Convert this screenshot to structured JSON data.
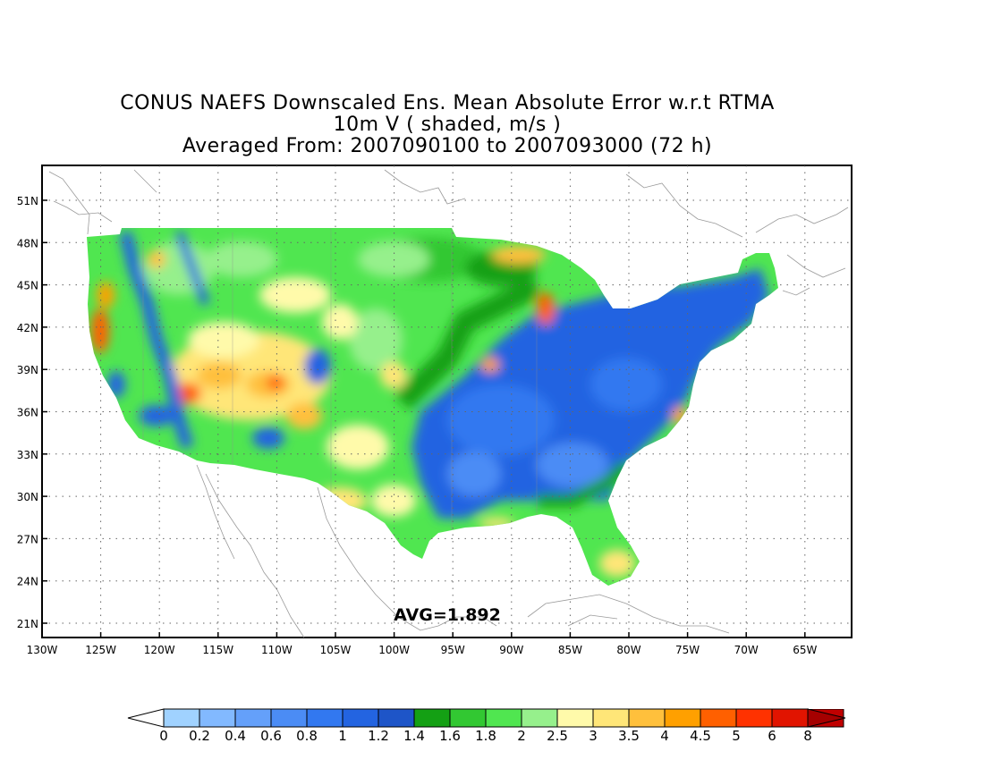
{
  "title": {
    "line1": "CONUS NAEFS Downscaled Ens. Mean Absolute Error w.r.t RTMA",
    "line2": "10m V ( shaded, m/s )",
    "line3": "Averaged From: 2007090100 to 2007093000 (72 h)"
  },
  "map": {
    "lat_labels": [
      "51N",
      "48N",
      "45N",
      "42N",
      "39N",
      "36N",
      "33N",
      "30N",
      "27N",
      "24N",
      "21N"
    ],
    "lon_labels": [
      "130W",
      "125W",
      "120W",
      "115W",
      "110W",
      "105W",
      "100W",
      "95W",
      "90W",
      "85W",
      "80W",
      "75W",
      "70W",
      "65W"
    ],
    "avg_label": "AVG=1.892",
    "grid": "dotted"
  },
  "colorbar": {
    "labels": [
      "0",
      "0.2",
      "0.4",
      "0.6",
      "0.8",
      "1",
      "1.2",
      "1.4",
      "1.6",
      "1.8",
      "2",
      "2.5",
      "3",
      "3.5",
      "4",
      "4.5",
      "5",
      "6",
      "8"
    ],
    "under_color": "#ffffff",
    "colors": [
      "#a0d2ff",
      "#82b9ff",
      "#64a0fa",
      "#4b8cf5",
      "#3278f0",
      "#2364e1",
      "#1e55c8",
      "#14a014",
      "#32c832",
      "#50e650",
      "#96f08c",
      "#fffaaa",
      "#ffe678",
      "#ffc03c",
      "#ffa000",
      "#ff6000",
      "#ff3200",
      "#e11400",
      "#c00000"
    ],
    "over_color": "#a50000"
  }
}
